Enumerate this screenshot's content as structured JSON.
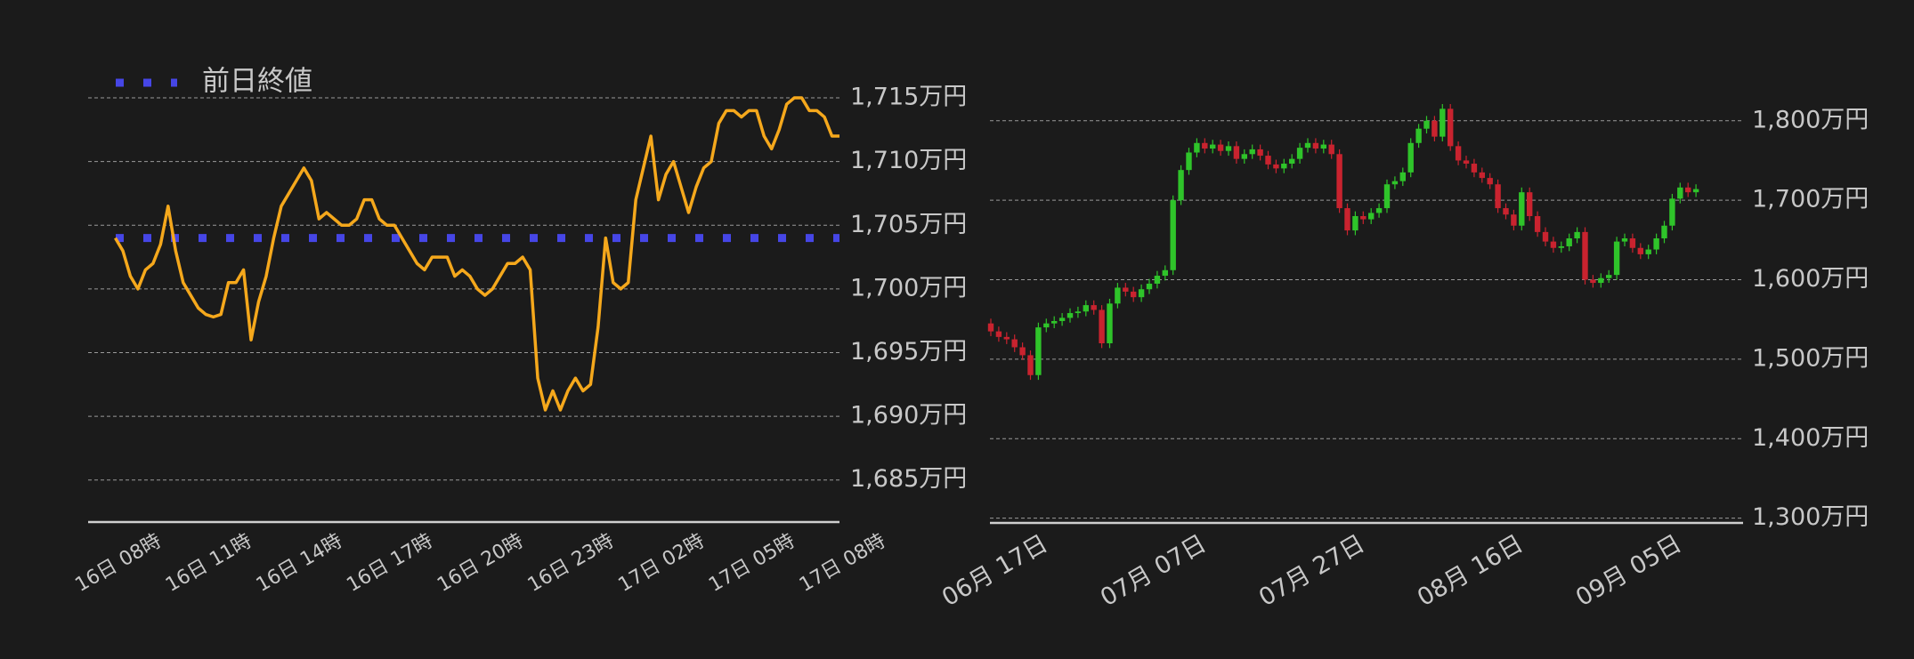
{
  "chart_data": [
    {
      "type": "line",
      "x": [
        0,
        0.25,
        0.5,
        0.75,
        1,
        1.25,
        1.5,
        1.75,
        2,
        2.25,
        2.5,
        2.75,
        3,
        3.25,
        3.5,
        3.75,
        4,
        4.25,
        4.5,
        4.75,
        5,
        5.25,
        5.5,
        5.75,
        6,
        6.25,
        6.5,
        6.75,
        7,
        7.25,
        7.5,
        7.75,
        8,
        8.25,
        8.5,
        8.75,
        9,
        9.25,
        9.5,
        9.75,
        10,
        10.25,
        10.5,
        10.75,
        11,
        11.25,
        11.5,
        11.75,
        12,
        12.25,
        12.5,
        12.75,
        13,
        13.25,
        13.5,
        13.75,
        14,
        14.25,
        14.5,
        14.75,
        15,
        15.25,
        15.5,
        15.75,
        16,
        16.25,
        16.5,
        16.75,
        17,
        17.25,
        17.5,
        17.75,
        18,
        18.25,
        18.5,
        18.75,
        19,
        19.25,
        19.5,
        19.75,
        20,
        20.25,
        20.5,
        20.75,
        21,
        21.25,
        21.5,
        21.75,
        22,
        22.25,
        22.5,
        22.75,
        23,
        23.25,
        23.5,
        23.75,
        24
      ],
      "series": [
        {
          "color": "#f5a81c",
          "values": [
            1704,
            1703,
            1701,
            1700,
            1701.5,
            1702,
            1703.5,
            1706.5,
            1703,
            1700.5,
            1699.5,
            1698.5,
            1698,
            1697.8,
            1698,
            1700.5,
            1700.5,
            1701.5,
            1696,
            1699,
            1701,
            1704,
            1706.5,
            1707.5,
            1708.5,
            1709.5,
            1708.5,
            1705.5,
            1706,
            1705.5,
            1705,
            1705,
            1705.5,
            1707,
            1707,
            1705.5,
            1705,
            1705,
            1704,
            1703,
            1702,
            1701.5,
            1702.5,
            1702.5,
            1702.5,
            1701,
            1701.5,
            1701,
            1700,
            1699.5,
            1700,
            1701,
            1702,
            1702,
            1702.5,
            1701.5,
            1693,
            1690.5,
            1692,
            1690.5,
            1692,
            1693,
            1692,
            1692.5,
            1697,
            1704,
            1700.5,
            1700,
            1700.5,
            1707,
            1709.5,
            1712,
            1707,
            1709,
            1710,
            1708,
            1706,
            1708,
            1709.5,
            1710,
            1713,
            1714,
            1714,
            1713.5,
            1714,
            1714,
            1712,
            1711,
            1712.5,
            1714.5,
            1715,
            1715,
            1714,
            1714,
            1713.5,
            1712,
            1712
          ]
        }
      ],
      "reference_lines": [
        {
          "name": "前日終値",
          "value": 1704,
          "color": "#4646e6"
        }
      ],
      "legend": "upper left",
      "xlim": [
        -0.9,
        24
      ],
      "xticks": [
        {
          "value": 0,
          "label": "16日 08時"
        },
        {
          "value": 3,
          "label": "16日 11時"
        },
        {
          "value": 6,
          "label": "16日 14時"
        },
        {
          "value": 9,
          "label": "16日 17時"
        },
        {
          "value": 12,
          "label": "16日 20時"
        },
        {
          "value": 15,
          "label": "16日 23時"
        },
        {
          "value": 18,
          "label": "17日 02時"
        },
        {
          "value": 21,
          "label": "17日 05時"
        },
        {
          "value": 24,
          "label": "17日 08時"
        }
      ],
      "ylim": [
        1681.7,
        1716.4
      ],
      "yticks": [
        {
          "value": 1685,
          "label": "1,685万円"
        },
        {
          "value": 1690,
          "label": "1,690万円"
        },
        {
          "value": 1695,
          "label": "1,695万円"
        },
        {
          "value": 1700,
          "label": "1,700万円"
        },
        {
          "value": 1705,
          "label": "1,705万円"
        },
        {
          "value": 1710,
          "label": "1,710万円"
        },
        {
          "value": 1715,
          "label": "1,715万円"
        }
      ],
      "grid": true
    },
    {
      "type": "candlestick",
      "x": [
        "06月 17日",
        "06月 18日",
        "06月 19日",
        "06月 20日",
        "06月 21日",
        "06月 22日",
        "06月 23日",
        "06月 24日",
        "06月 25日",
        "06月 26日",
        "06月 27日",
        "06月 28日",
        "06月 29日",
        "06月 30日",
        "07月 01日",
        "07月 02日",
        "07月 03日",
        "07月 04日",
        "07月 05日",
        "07月 06日",
        "07月 07日",
        "07月 08日",
        "07月 09日",
        "07月 10日",
        "07月 11日",
        "07月 12日",
        "07月 13日",
        "07月 14日",
        "07月 15日",
        "07月 16日",
        "07月 17日",
        "07月 18日",
        "07月 19日",
        "07月 20日",
        "07月 21日",
        "07月 22日",
        "07月 23日",
        "07月 24日",
        "07月 25日",
        "07月 26日",
        "07月 27日",
        "07月 28日",
        "07月 29日",
        "07月 30日",
        "07月 31日",
        "08月 01日",
        "08月 02日",
        "08月 03日",
        "08月 04日",
        "08月 05日",
        "08月 06日",
        "08月 07日",
        "08月 08日",
        "08月 09日",
        "08月 10日",
        "08月 11日",
        "08月 12日",
        "08月 13日",
        "08月 14日",
        "08月 15日",
        "08月 16日",
        "08月 17日",
        "08月 18日",
        "08月 19日",
        "08月 20日",
        "08月 21日",
        "08月 22日",
        "08月 23日",
        "08月 24日",
        "08月 25日",
        "08月 26日",
        "08月 27日",
        "08月 28日",
        "08月 29日",
        "08月 30日",
        "08月 31日",
        "09月 01日",
        "09月 02日",
        "09月 03日",
        "09月 04日",
        "09月 05日",
        "09月 06日",
        "09月 07日",
        "09月 08日",
        "09月 09日",
        "09月 10日",
        "09月 11日",
        "09月 12日",
        "09月 13日",
        "09月 14日"
      ],
      "open": [
        1545,
        1535,
        1528,
        1525,
        1515,
        1505,
        1480,
        1540,
        1545,
        1548,
        1552,
        1558,
        1560,
        1568,
        1562,
        1520,
        1570,
        1590,
        1585,
        1578,
        1588,
        1595,
        1605,
        1612,
        1700,
        1738,
        1760,
        1772,
        1765,
        1770,
        1762,
        1768,
        1752,
        1758,
        1764,
        1756,
        1745,
        1740,
        1746,
        1752,
        1766,
        1772,
        1765,
        1770,
        1758,
        1690,
        1662,
        1680,
        1676,
        1684,
        1690,
        1720,
        1724,
        1735,
        1772,
        1790,
        1800,
        1780,
        1815,
        1768,
        1750,
        1746,
        1735,
        1728,
        1720,
        1690,
        1682,
        1668,
        1710,
        1680,
        1660,
        1648,
        1640,
        1642,
        1652,
        1660,
        1600,
        1596,
        1602,
        1606,
        1648,
        1652,
        1640,
        1632,
        1638,
        1652,
        1668,
        1702,
        1716,
        1710
      ],
      "high": [
        1551,
        1541,
        1534,
        1531,
        1521,
        1511,
        1546,
        1551,
        1554,
        1558,
        1564,
        1566,
        1574,
        1574,
        1568,
        1576,
        1596,
        1596,
        1591,
        1594,
        1601,
        1611,
        1618,
        1706,
        1744,
        1766,
        1778,
        1778,
        1776,
        1776,
        1774,
        1774,
        1764,
        1770,
        1770,
        1762,
        1751,
        1752,
        1758,
        1772,
        1778,
        1778,
        1776,
        1776,
        1764,
        1696,
        1686,
        1686,
        1690,
        1696,
        1726,
        1730,
        1741,
        1778,
        1796,
        1806,
        1806,
        1821,
        1821,
        1774,
        1756,
        1752,
        1741,
        1734,
        1726,
        1696,
        1688,
        1716,
        1716,
        1686,
        1666,
        1654,
        1648,
        1658,
        1666,
        1666,
        1606,
        1608,
        1612,
        1654,
        1658,
        1658,
        1646,
        1644,
        1658,
        1674,
        1708,
        1722,
        1722,
        1720
      ],
      "low": [
        1529,
        1522,
        1519,
        1509,
        1499,
        1474,
        1474,
        1534,
        1539,
        1542,
        1546,
        1552,
        1554,
        1556,
        1514,
        1514,
        1564,
        1579,
        1572,
        1572,
        1582,
        1589,
        1599,
        1606,
        1694,
        1732,
        1754,
        1759,
        1759,
        1756,
        1756,
        1746,
        1746,
        1752,
        1750,
        1739,
        1734,
        1734,
        1740,
        1746,
        1760,
        1759,
        1759,
        1752,
        1684,
        1656,
        1656,
        1670,
        1670,
        1678,
        1684,
        1714,
        1718,
        1729,
        1766,
        1784,
        1774,
        1774,
        1762,
        1744,
        1740,
        1729,
        1722,
        1714,
        1684,
        1676,
        1662,
        1662,
        1674,
        1654,
        1642,
        1634,
        1634,
        1636,
        1646,
        1594,
        1590,
        1590,
        1596,
        1600,
        1642,
        1634,
        1626,
        1626,
        1632,
        1646,
        1662,
        1696,
        1704,
        1704
      ],
      "close": [
        1535,
        1528,
        1525,
        1515,
        1505,
        1480,
        1540,
        1545,
        1548,
        1552,
        1558,
        1560,
        1568,
        1562,
        1520,
        1570,
        1590,
        1585,
        1578,
        1588,
        1595,
        1605,
        1612,
        1700,
        1738,
        1760,
        1772,
        1765,
        1770,
        1762,
        1768,
        1752,
        1758,
        1764,
        1756,
        1745,
        1740,
        1746,
        1752,
        1766,
        1772,
        1765,
        1770,
        1758,
        1690,
        1662,
        1680,
        1676,
        1684,
        1690,
        1720,
        1724,
        1735,
        1772,
        1790,
        1800,
        1780,
        1815,
        1768,
        1750,
        1746,
        1735,
        1728,
        1720,
        1690,
        1682,
        1668,
        1710,
        1680,
        1660,
        1648,
        1640,
        1642,
        1652,
        1660,
        1600,
        1596,
        1602,
        1606,
        1648,
        1652,
        1640,
        1632,
        1638,
        1652,
        1668,
        1702,
        1716,
        1710,
        1714
      ],
      "up_color": "#2fc42a",
      "down_color": "#c9232f",
      "xticks": [
        "06月 17日",
        "07月 07日",
        "07月 27日",
        "08月 16日",
        "09月 05日"
      ],
      "ylim": [
        1294,
        1840
      ],
      "yticks": [
        {
          "value": 1300,
          "label": "1,300万円"
        },
        {
          "value": 1400,
          "label": "1,400万円"
        },
        {
          "value": 1500,
          "label": "1,500万円"
        },
        {
          "value": 1600,
          "label": "1,600万円"
        },
        {
          "value": 1700,
          "label": "1,700万円"
        },
        {
          "value": 1800,
          "label": "1,800万円"
        }
      ],
      "grid": true
    }
  ]
}
